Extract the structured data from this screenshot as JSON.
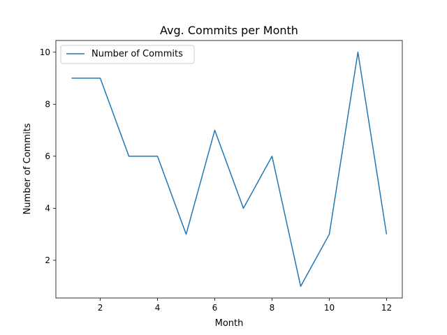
{
  "chart_data": {
    "type": "line",
    "title": "Avg. Commits per Month",
    "xlabel": "Month",
    "ylabel": "Number of Commits",
    "xlim": [
      0.45,
      12.55
    ],
    "ylim": [
      0.55,
      10.45
    ],
    "xticks": [
      2,
      4,
      6,
      8,
      10,
      12
    ],
    "yticks": [
      2,
      4,
      6,
      8,
      10
    ],
    "grid": false,
    "legend_position": "upper-left",
    "series": [
      {
        "name": "Number of Commits",
        "color": "#1f77b4",
        "x": [
          1,
          2,
          3,
          4,
          5,
          6,
          7,
          8,
          9,
          10,
          11,
          12
        ],
        "y": [
          9,
          9,
          6,
          6,
          3,
          7,
          4,
          6,
          1,
          3,
          10,
          3
        ]
      }
    ]
  }
}
